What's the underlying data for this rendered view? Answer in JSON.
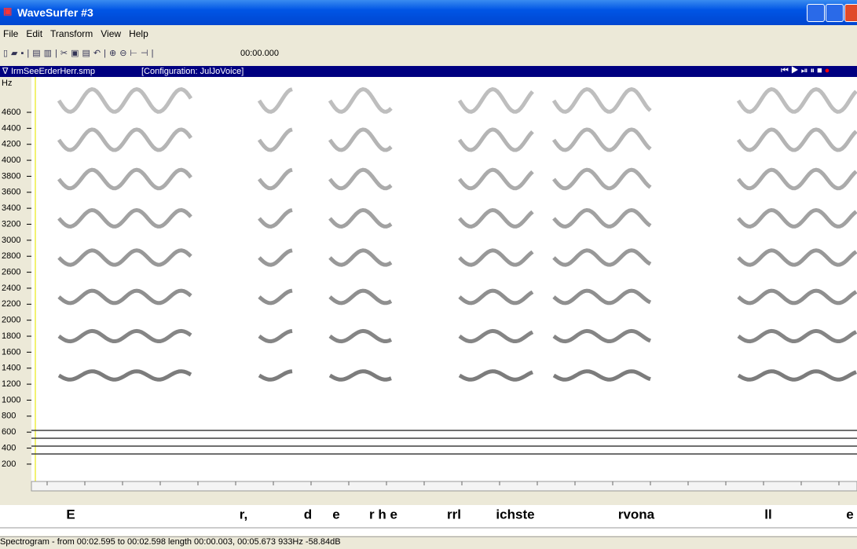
{
  "window": {
    "title": "WaveSurfer #3"
  },
  "menu": [
    "File",
    "Edit",
    "Transform",
    "View",
    "Help"
  ],
  "toolbar": {
    "time": "00:00.000"
  },
  "pane": {
    "file": "IrmSeeErderHerr.smp",
    "config": "[Configuration: JulJoVoice]"
  },
  "axis": {
    "unit": "Hz",
    "ticks": [
      4600,
      4400,
      4200,
      4000,
      3800,
      3600,
      3400,
      3200,
      3000,
      2800,
      2600,
      2400,
      2200,
      2000,
      1800,
      1600,
      1400,
      1200,
      1000,
      800,
      600,
      400,
      200
    ]
  },
  "transcription": [
    "E",
    "r,",
    "d",
    "e",
    "r h e",
    "rrl",
    "ichste",
    "rvona",
    "ll",
    "e"
  ],
  "status": "Spectrogram - from 00:02.595 to 00:02.598 length 00:00.003, 00:05.673 933Hz -58.84dB"
}
